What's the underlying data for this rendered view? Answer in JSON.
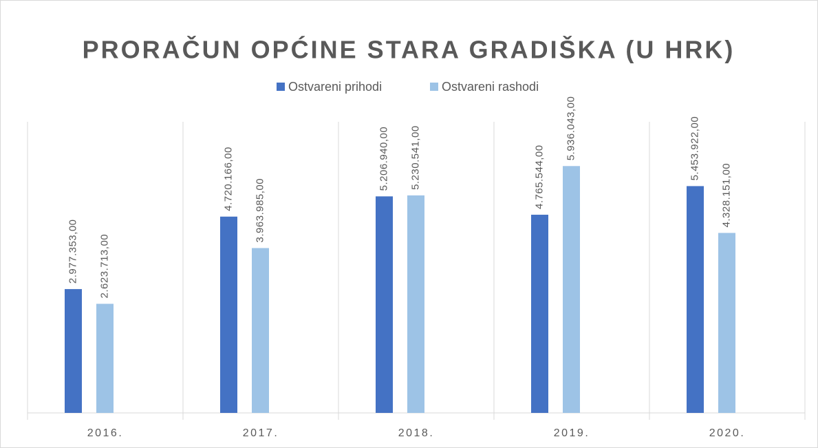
{
  "chart_data": {
    "type": "bar",
    "title": "PRORAČUN OPĆINE STARA GRADIŠKA (U HRK)",
    "categories": [
      "2016.",
      "2017.",
      "2018.",
      "2019.",
      "2020."
    ],
    "series": [
      {
        "name": "Ostvareni prihodi",
        "color": "#4472c4",
        "values": [
          2977353,
          4720166,
          5206940,
          4765544,
          5453922
        ],
        "value_labels": [
          "2.977.353,00",
          "4.720.166,00",
          "5.206.940,00",
          "4.765.544,00",
          "5.453.922,00"
        ]
      },
      {
        "name": "Ostvareni rashodi",
        "color": "#9dc3e6",
        "values": [
          2623713,
          3963985,
          5230541,
          5936043,
          4328151
        ],
        "value_labels": [
          "2.623.713,00",
          "3.963.985,00",
          "5.230.541,00",
          "5.936.043,00",
          "4.328.151,00"
        ]
      }
    ],
    "ylim": [
      0,
      7000000
    ],
    "legend": "top"
  }
}
